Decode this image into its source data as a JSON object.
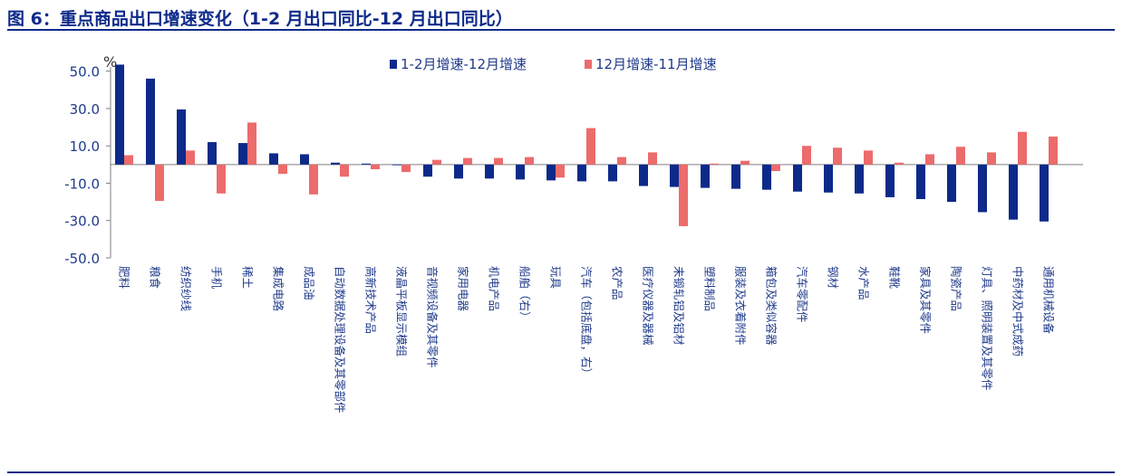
{
  "title": "图 6：重点商品出口增速变化（1-2 月出口同比-12 月出口同比）",
  "chart_data": {
    "type": "bar",
    "ylabel": "%",
    "ylim": [
      -50,
      60
    ],
    "yticks": [
      50,
      30,
      10,
      -10,
      -30,
      -50
    ],
    "ytick_labels": [
      "50.0",
      "30.0",
      "10.0",
      "-10.0",
      "-30.0",
      "-50.0"
    ],
    "grid": false,
    "legend_position": "top",
    "categories": [
      "肥料",
      "粮食",
      "纺织纱线",
      "手机",
      "稀土",
      "集成电路",
      "成品油",
      "自动数据处理设备及其零部件",
      "高新技术产品",
      "液晶平板显示模组",
      "音视频设备及其零件",
      "家用电器",
      "机电产品",
      "船舶（右）",
      "玩具",
      "汽车（包括底盘，右）",
      "农产品",
      "医疗仪器及器械",
      "未锻轧铝及铝材",
      "塑料制品",
      "服装及衣着附件",
      "箱包及类似容器",
      "汽车零配件",
      "钢材",
      "水产品",
      "鞋靴",
      "家具及其零件",
      "陶瓷产品",
      "灯具、照明装置及其零件",
      "中药材及中式成药",
      "通用机械设备"
    ],
    "series": [
      {
        "name": "1-2月增速-12月增速",
        "color": "#0d2a8a",
        "values": [
          53.5,
          46,
          29.5,
          12,
          11.5,
          6,
          5.5,
          1,
          0.5,
          0,
          -6.5,
          -7.5,
          -7.5,
          -8,
          -8.5,
          -9,
          -9,
          -11.5,
          -12,
          -12.5,
          -13,
          -13.5,
          -14.5,
          -15,
          -15.5,
          -17.5,
          -18.5,
          -20,
          -25.5,
          -29.5,
          -30.5
        ]
      },
      {
        "name": "12月增速-11月增速",
        "color": "#ec6b6b",
        "values": [
          5,
          -19.5,
          7.5,
          -15.5,
          22.5,
          -5,
          -16,
          -6.5,
          -2.5,
          -4,
          2.5,
          3.5,
          3.5,
          4,
          -7,
          19.5,
          4,
          6.5,
          -33,
          0.5,
          2,
          -3.5,
          10,
          9,
          7.5,
          1,
          5.5,
          9.5,
          6.5,
          17.5,
          15
        ]
      }
    ]
  }
}
